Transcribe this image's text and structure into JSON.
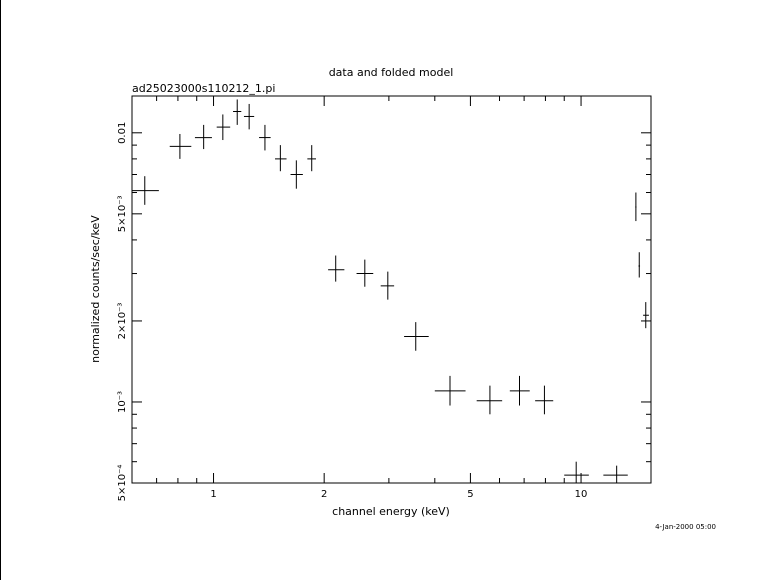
{
  "chart_data": {
    "type": "scatter",
    "title": "data and folded model",
    "subtitle": "ad25023000s110212_1.pi",
    "xlabel": "channel energy (keV)",
    "ylabel": "normalized counts/sec/keV",
    "timestamp": "4-Jan-2000 05:00",
    "x_scale": "log",
    "y_scale": "log",
    "xlim": [
      0.6,
      15.5
    ],
    "ylim": [
      0.0005,
      0.0137
    ],
    "x_tick_labels": [
      {
        "value": 1,
        "label": "1"
      },
      {
        "value": 2,
        "label": "2"
      },
      {
        "value": 5,
        "label": "5"
      },
      {
        "value": 10,
        "label": "10"
      }
    ],
    "y_tick_labels": [
      {
        "value": 0.0005,
        "label": "5×10⁻⁴"
      },
      {
        "value": 0.001,
        "label": "10⁻³"
      },
      {
        "value": 0.002,
        "label": "2×10⁻³"
      },
      {
        "value": 0.005,
        "label": "5×10⁻³"
      },
      {
        "value": 0.01,
        "label": "0.01"
      }
    ],
    "points": [
      {
        "x": 0.65,
        "xlo": 0.6,
        "xhi": 0.71,
        "y": 0.0061,
        "ylo": 0.0054,
        "yhi": 0.0069
      },
      {
        "x": 0.81,
        "xlo": 0.76,
        "xhi": 0.87,
        "y": 0.0089,
        "ylo": 0.008,
        "yhi": 0.0099
      },
      {
        "x": 0.94,
        "xlo": 0.89,
        "xhi": 0.99,
        "y": 0.0096,
        "ylo": 0.0087,
        "yhi": 0.0107
      },
      {
        "x": 1.06,
        "xlo": 1.02,
        "xhi": 1.11,
        "y": 0.0105,
        "ylo": 0.0094,
        "yhi": 0.0117
      },
      {
        "x": 1.16,
        "xlo": 1.13,
        "xhi": 1.19,
        "y": 0.012,
        "ylo": 0.0107,
        "yhi": 0.0133
      },
      {
        "x": 1.25,
        "xlo": 1.21,
        "xhi": 1.29,
        "y": 0.0115,
        "ylo": 0.0103,
        "yhi": 0.0128
      },
      {
        "x": 1.38,
        "xlo": 1.33,
        "xhi": 1.43,
        "y": 0.0096,
        "ylo": 0.0086,
        "yhi": 0.0107
      },
      {
        "x": 1.52,
        "xlo": 1.47,
        "xhi": 1.58,
        "y": 0.008,
        "ylo": 0.0072,
        "yhi": 0.009
      },
      {
        "x": 1.68,
        "xlo": 1.62,
        "xhi": 1.75,
        "y": 0.007,
        "ylo": 0.0062,
        "yhi": 0.0079
      },
      {
        "x": 1.85,
        "xlo": 1.8,
        "xhi": 1.9,
        "y": 0.008,
        "ylo": 0.0072,
        "yhi": 0.009
      },
      {
        "x": 2.15,
        "xlo": 2.05,
        "xhi": 2.27,
        "y": 0.0031,
        "ylo": 0.0028,
        "yhi": 0.0035
      },
      {
        "x": 2.58,
        "xlo": 2.45,
        "xhi": 2.72,
        "y": 0.003,
        "ylo": 0.00268,
        "yhi": 0.00338
      },
      {
        "x": 2.98,
        "xlo": 2.85,
        "xhi": 3.1,
        "y": 0.0027,
        "ylo": 0.0024,
        "yhi": 0.00305
      },
      {
        "x": 3.55,
        "xlo": 3.3,
        "xhi": 3.85,
        "y": 0.00175,
        "ylo": 0.00155,
        "yhi": 0.00198
      },
      {
        "x": 4.4,
        "xlo": 4.0,
        "xhi": 4.85,
        "y": 0.0011,
        "ylo": 0.00097,
        "yhi": 0.00125
      },
      {
        "x": 5.65,
        "xlo": 5.2,
        "xhi": 6.1,
        "y": 0.00101,
        "ylo": 0.0009,
        "yhi": 0.00115
      },
      {
        "x": 6.8,
        "xlo": 6.4,
        "xhi": 7.25,
        "y": 0.0011,
        "ylo": 0.00097,
        "yhi": 0.00125
      },
      {
        "x": 7.95,
        "xlo": 7.5,
        "xhi": 8.4,
        "y": 0.00101,
        "ylo": 0.0009,
        "yhi": 0.00115
      },
      {
        "x": 9.7,
        "xlo": 9.0,
        "xhi": 10.5,
        "y": 0.000535,
        "ylo": 0.0005,
        "yhi": 0.0006
      },
      {
        "x": 12.5,
        "xlo": 11.5,
        "xhi": 13.4,
        "y": 0.000535,
        "ylo": 0.0005,
        "yhi": 0.00058
      },
      {
        "x": 14.1,
        "xlo": 14.05,
        "xhi": 14.15,
        "y": 0.0053,
        "ylo": 0.0047,
        "yhi": 0.006
      },
      {
        "x": 14.4,
        "xlo": 14.33,
        "xhi": 14.47,
        "y": 0.0032,
        "ylo": 0.0029,
        "yhi": 0.0036
      },
      {
        "x": 15.0,
        "xlo": 14.75,
        "xhi": 15.3,
        "y": 0.0021,
        "ylo": 0.00188,
        "yhi": 0.00235
      }
    ]
  }
}
